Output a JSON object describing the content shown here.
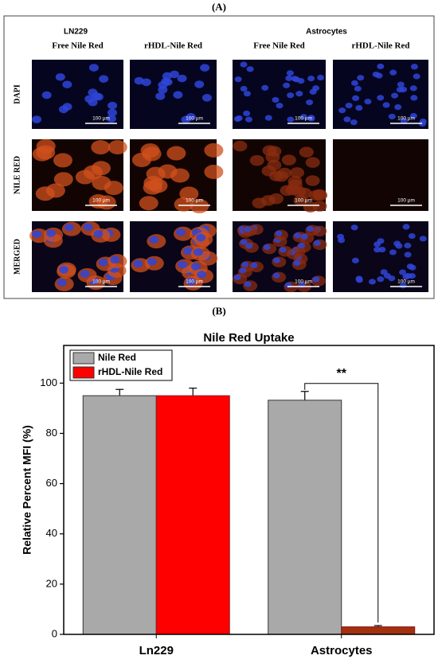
{
  "panel_a": {
    "label": "(A)",
    "groups": [
      "LN229",
      "Astrocytes"
    ],
    "columns": [
      "Free Nile Red",
      "rHDL-Nile Red",
      "Free Nile Red",
      "rHDL-Nile Red"
    ],
    "rows": [
      "DAPI",
      "NILE RED",
      "MERGED"
    ],
    "scale_bar": "100 µm"
  },
  "panel_b_label": "(B)",
  "chart_data": {
    "type": "bar",
    "title": "Nile Red Uptake",
    "y_label": "Relative Percent MFI (%)",
    "categories": [
      "Ln229",
      "Astrocytes"
    ],
    "series": [
      {
        "name": "Nile Red",
        "color": "#a9a9a9",
        "values": [
          95,
          93.2
        ],
        "errors": [
          2.5,
          3.5
        ]
      },
      {
        "name": "rHDL-Nile Red",
        "color": "#ff0000",
        "colors": [
          "#ff0000",
          "#a3300f"
        ],
        "values": [
          95,
          3
        ],
        "errors": [
          3,
          0.5
        ]
      }
    ],
    "ylim": [
      0,
      115
    ],
    "yticks": [
      0,
      20,
      40,
      60,
      80,
      100
    ],
    "legend": "upper left",
    "annotation": "**"
  }
}
